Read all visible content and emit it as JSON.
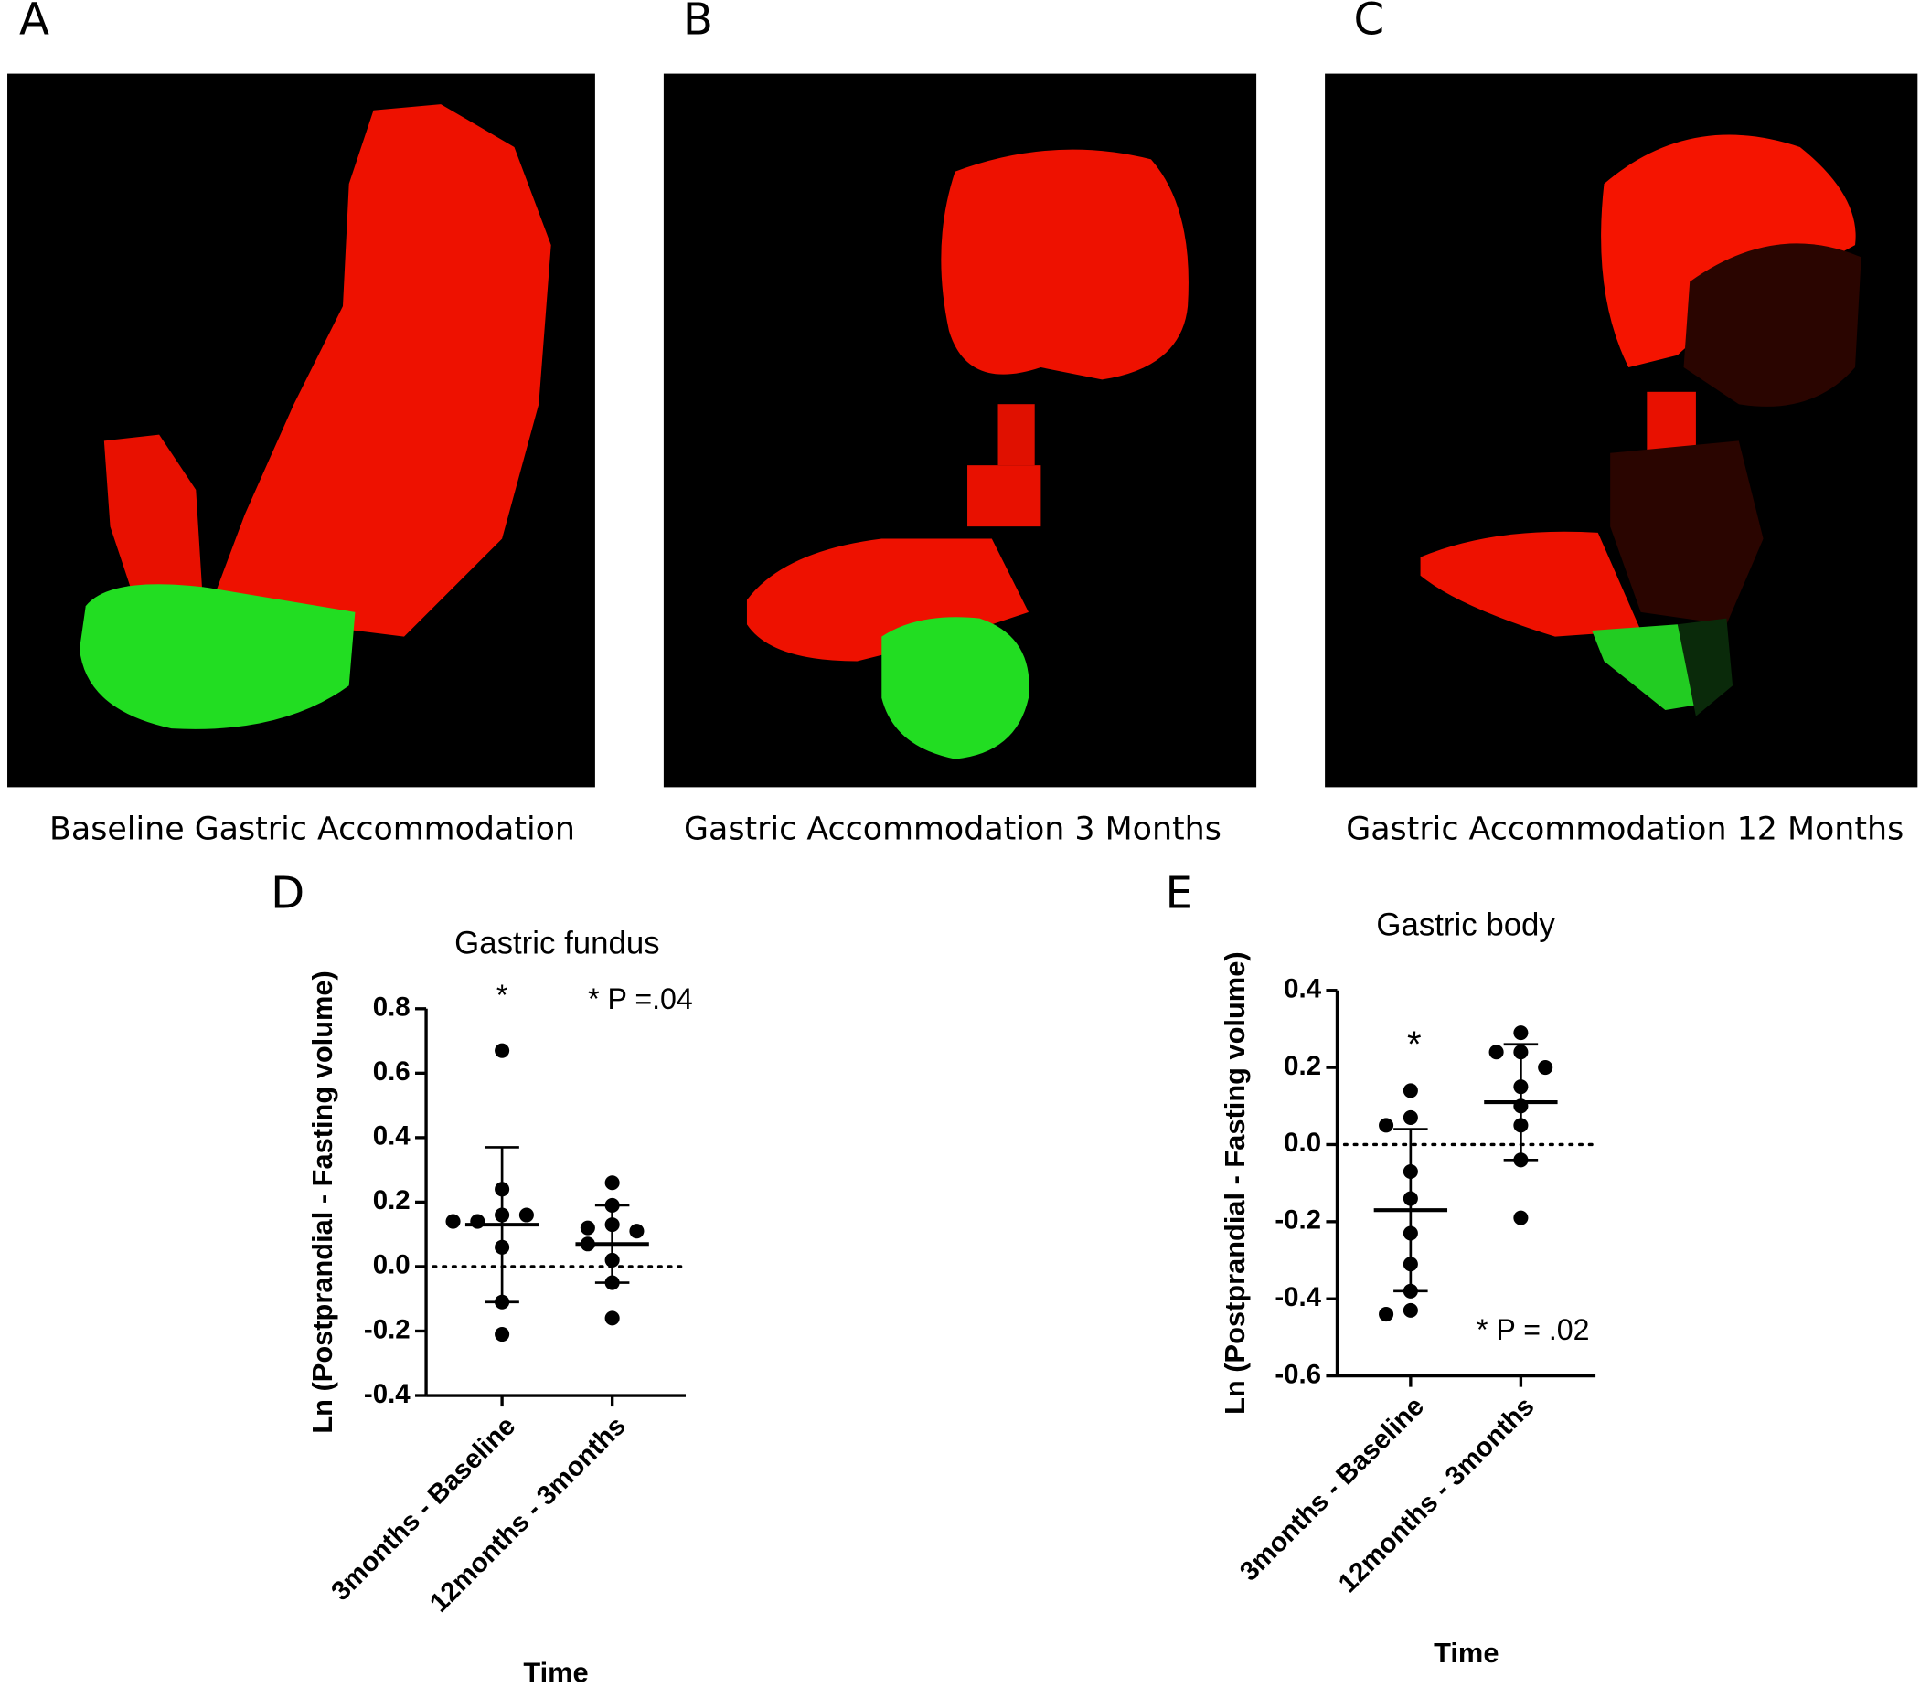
{
  "panels": [
    {
      "label": "A",
      "caption": "Baseline Gastric Accommodation"
    },
    {
      "label": "B",
      "caption": "Gastric Accommodation 3 Months"
    },
    {
      "label": "C",
      "caption": "Gastric Accommodation 12 Months"
    }
  ],
  "chart_data": [
    {
      "type": "strip",
      "panel": "D",
      "title": "Gastric fundus",
      "ylabel": "Ln (Postprandial - Fasting volume)",
      "xlabel": "Time",
      "categories": [
        "3months - Baseline",
        "12months - 3months"
      ],
      "values": [
        [
          0.67,
          0.24,
          0.16,
          0.14,
          0.16,
          0.14,
          0.06,
          -0.11,
          -0.21
        ],
        [
          0.26,
          0.19,
          0.13,
          0.12,
          0.11,
          0.07,
          0.02,
          -0.05,
          -0.16
        ]
      ],
      "means": [
        0.13,
        0.07
      ],
      "errors": [
        0.24,
        0.12
      ],
      "color": "#000000",
      "reference_line": 0,
      "ylim": [
        -0.4,
        0.8
      ],
      "yticks": [
        -0.4,
        -0.2,
        {
          "value": 0,
          "label": "0.0"
        },
        0.2,
        0.4,
        0.6,
        0.8
      ],
      "annotations": [
        "*",
        "* P =.04"
      ]
    },
    {
      "type": "strip",
      "panel": "E",
      "title": "Gastric body",
      "ylabel": "Ln (Postprandial - Fasting volume)",
      "xlabel": "Time",
      "categories": [
        "3months - Baseline",
        "12months - 3months"
      ],
      "values": [
        [
          0.14,
          0.07,
          0.05,
          -0.07,
          -0.14,
          -0.23,
          -0.31,
          -0.38,
          -0.43,
          -0.44
        ],
        [
          0.29,
          0.24,
          0.24,
          0.2,
          0.15,
          0.1,
          0.05,
          -0.04,
          -0.19
        ]
      ],
      "means": [
        -0.17,
        0.11
      ],
      "errors": [
        0.21,
        0.15
      ],
      "color": "#000000",
      "reference_line": 0,
      "ylim": [
        -0.6,
        0.4
      ],
      "yticks": [
        -0.6,
        -0.4,
        -0.2,
        {
          "value": 0,
          "label": "0.0"
        },
        0.2,
        0.4
      ],
      "annotations": [
        "*",
        "* P = .02"
      ]
    }
  ]
}
